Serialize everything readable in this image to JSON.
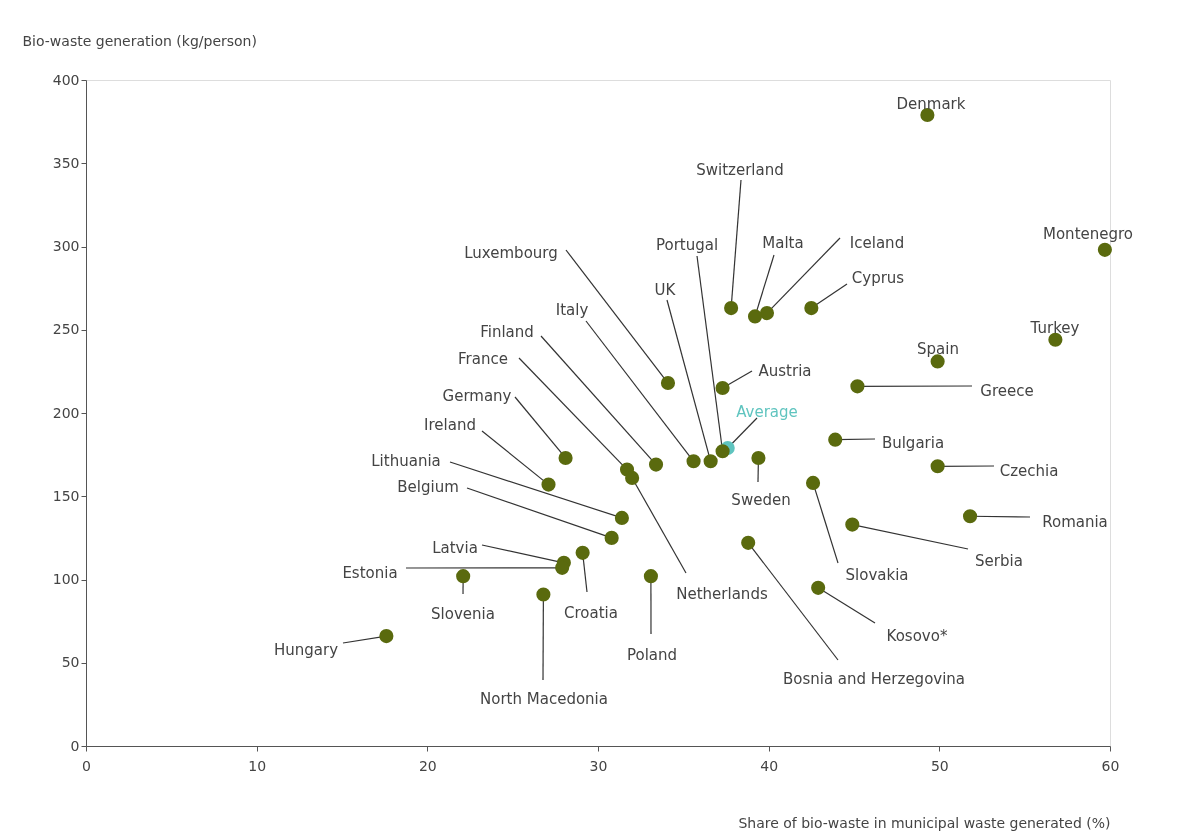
{
  "chart_data": {
    "type": "scatter",
    "xlabel": "Share of bio-waste in municipal waste generated (%)",
    "ylabel": "Bio-waste generation (kg/person)",
    "xlim": [
      0,
      60
    ],
    "xticks": [
      0,
      10,
      20,
      30,
      40,
      50,
      60
    ],
    "ylim": [
      0,
      400
    ],
    "yticks": [
      0,
      50,
      100,
      150,
      200,
      250,
      300,
      350,
      400
    ],
    "grid": false,
    "marker": "circle",
    "x": [
      49.3,
      59.7,
      56.8,
      49.9,
      45.2,
      49.9,
      51.8,
      44.9,
      43.9,
      42.9,
      42.6,
      38.8,
      39.4,
      42.5,
      39.9,
      39.2,
      37.8,
      37.3,
      37.6,
      37.3,
      36.6,
      35.6,
      33.4,
      31.7,
      32.0,
      34.1,
      28.1,
      27.1,
      31.4,
      30.8,
      28.0,
      27.9,
      29.1,
      22.1,
      26.8,
      33.1,
      17.6
    ],
    "values": [
      379,
      298,
      244,
      231,
      216,
      168,
      138,
      133,
      184,
      95,
      158,
      122,
      173,
      263,
      260,
      258,
      263,
      215,
      179,
      177,
      171,
      171,
      169,
      166,
      161,
      218,
      173,
      157,
      137,
      125,
      110,
      107,
      116,
      102,
      91,
      102,
      66
    ],
    "colors": [
      "#5a6a0e",
      "#5a6a0e",
      "#5a6a0e",
      "#5a6a0e",
      "#5a6a0e",
      "#5a6a0e",
      "#5a6a0e",
      "#5a6a0e",
      "#5a6a0e",
      "#5a6a0e",
      "#5a6a0e",
      "#5a6a0e",
      "#5a6a0e",
      "#5a6a0e",
      "#5a6a0e",
      "#5a6a0e",
      "#5a6a0e",
      "#5a6a0e",
      "#5fc4bf",
      "#5a6a0e",
      "#5a6a0e",
      "#5a6a0e",
      "#5a6a0e",
      "#5a6a0e",
      "#5a6a0e",
      "#5a6a0e",
      "#5a6a0e",
      "#5a6a0e",
      "#5a6a0e",
      "#5a6a0e",
      "#5a6a0e",
      "#5a6a0e",
      "#5a6a0e",
      "#5a6a0e",
      "#5a6a0e",
      "#5a6a0e",
      "#5a6a0e"
    ],
    "annotations": [
      {
        "text": "Denmark",
        "x": 49.3,
        "y": 379
      },
      {
        "text": "Montenegro",
        "x": 59.7,
        "y": 298
      },
      {
        "text": "Turkey",
        "x": 56.8,
        "y": 244
      },
      {
        "text": "Spain",
        "x": 49.9,
        "y": 231
      },
      {
        "text": "Greece",
        "x": 45.2,
        "y": 216
      },
      {
        "text": "Czechia",
        "x": 49.9,
        "y": 168
      },
      {
        "text": "Romania",
        "x": 51.8,
        "y": 138
      },
      {
        "text": "Serbia",
        "x": 44.9,
        "y": 133
      },
      {
        "text": "Bulgaria",
        "x": 43.9,
        "y": 184
      },
      {
        "text": "Kosovo*",
        "x": 42.9,
        "y": 95
      },
      {
        "text": "Slovakia",
        "x": 42.6,
        "y": 158
      },
      {
        "text": "Bosnia and Herzegovina",
        "x": 38.8,
        "y": 122
      },
      {
        "text": "Sweden",
        "x": 39.4,
        "y": 173
      },
      {
        "text": "Cyprus",
        "x": 42.5,
        "y": 263
      },
      {
        "text": "Iceland",
        "x": 39.9,
        "y": 260
      },
      {
        "text": "Malta",
        "x": 39.2,
        "y": 258
      },
      {
        "text": "Switzerland",
        "x": 37.8,
        "y": 263
      },
      {
        "text": "Austria",
        "x": 37.3,
        "y": 215
      },
      {
        "text": "Average",
        "x": 37.6,
        "y": 179
      },
      {
        "text": "Portugal",
        "x": 37.3,
        "y": 177
      },
      {
        "text": "UK",
        "x": 36.6,
        "y": 171
      },
      {
        "text": "Italy",
        "x": 35.6,
        "y": 171
      },
      {
        "text": "Finland",
        "x": 33.4,
        "y": 169
      },
      {
        "text": "France",
        "x": 31.7,
        "y": 166
      },
      {
        "text": "Netherlands",
        "x": 32.0,
        "y": 161
      },
      {
        "text": "Luxembourg",
        "x": 34.1,
        "y": 218
      },
      {
        "text": "Germany",
        "x": 28.1,
        "y": 173
      },
      {
        "text": "Ireland",
        "x": 27.1,
        "y": 157
      },
      {
        "text": "Lithuania",
        "x": 31.4,
        "y": 137
      },
      {
        "text": "Belgium",
        "x": 30.8,
        "y": 125
      },
      {
        "text": "Latvia",
        "x": 28.0,
        "y": 110
      },
      {
        "text": "Estonia",
        "x": 27.9,
        "y": 107
      },
      {
        "text": "Croatia",
        "x": 29.1,
        "y": 116
      },
      {
        "text": "Slovenia",
        "x": 22.1,
        "y": 102
      },
      {
        "text": "North Macedonia",
        "x": 26.8,
        "y": 91
      },
      {
        "text": "Poland",
        "x": 33.1,
        "y": 102
      },
      {
        "text": "Hungary",
        "x": 17.6,
        "y": 66
      }
    ]
  }
}
